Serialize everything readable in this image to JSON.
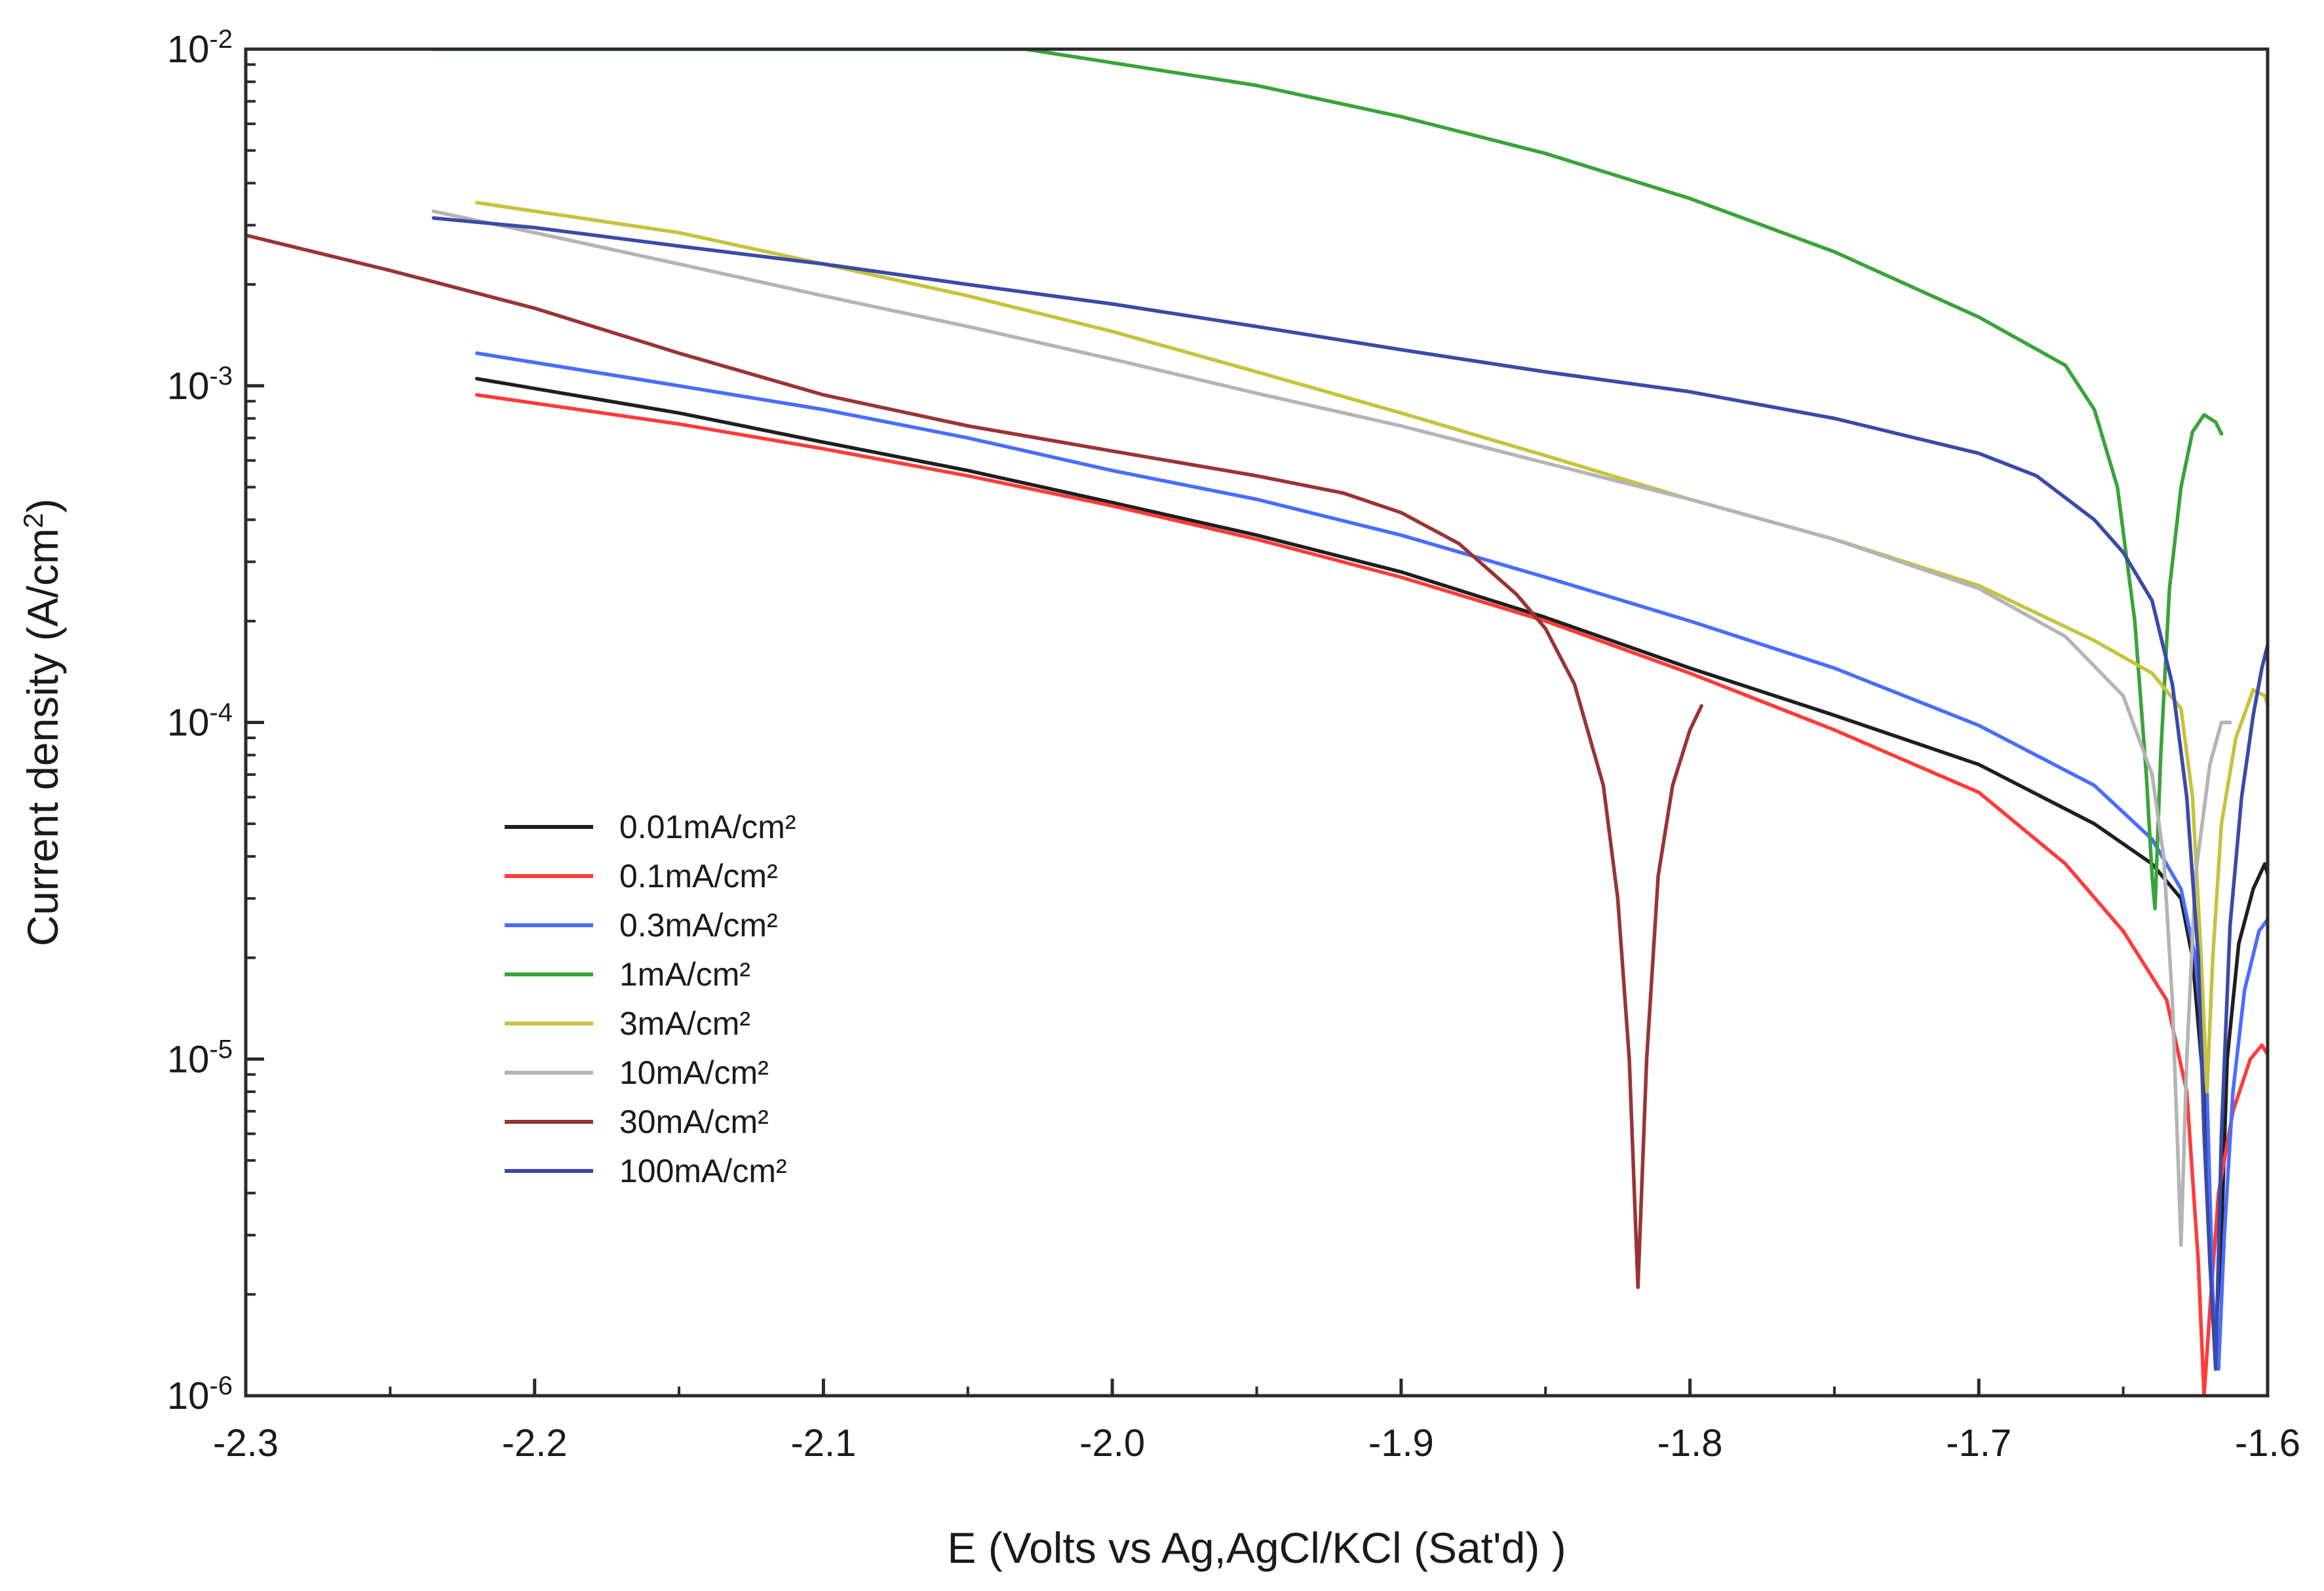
{
  "chart_data": {
    "type": "line",
    "title": "",
    "xlabel": "E (Volts vs Ag,AgCl/KCl (Sat'd) )",
    "ylabel": "Current density (A/cm²)",
    "ylabel_parts": {
      "main": "Current density (A/cm",
      "sup": "2",
      "end": ")"
    },
    "xlim": [
      -2.3,
      -1.6
    ],
    "ylim": [
      1e-06,
      0.01
    ],
    "yscale": "log",
    "grid": false,
    "legend_position": "lower-left",
    "xticks": [
      {
        "value": -2.3,
        "label": "-2.3"
      },
      {
        "value": -2.2,
        "label": "-2.2"
      },
      {
        "value": -2.1,
        "label": "-2.1"
      },
      {
        "value": -2.0,
        "label": "-2.0"
      },
      {
        "value": -1.9,
        "label": "-1.9"
      },
      {
        "value": -1.8,
        "label": "-1.8"
      },
      {
        "value": -1.7,
        "label": "-1.7"
      },
      {
        "value": -1.6,
        "label": "-1.6"
      }
    ],
    "yticks": [
      {
        "value": 0.01,
        "base": "10",
        "exp": "-2"
      },
      {
        "value": 0.001,
        "base": "10",
        "exp": "-3"
      },
      {
        "value": 0.0001,
        "base": "10",
        "exp": "-4"
      },
      {
        "value": 1e-05,
        "base": "10",
        "exp": "-5"
      },
      {
        "value": 1e-06,
        "base": "10",
        "exp": "-6"
      }
    ],
    "series": [
      {
        "name": "0.01mA/cm²",
        "color": "#1f1f1f",
        "points": [
          [
            -2.22,
            0.00105
          ],
          [
            -2.15,
            0.00083
          ],
          [
            -2.1,
            0.00068
          ],
          [
            -2.05,
            0.00056
          ],
          [
            -2.0,
            0.00045
          ],
          [
            -1.95,
            0.00036
          ],
          [
            -1.9,
            0.00028
          ],
          [
            -1.85,
            0.000205
          ],
          [
            -1.8,
            0.000145
          ],
          [
            -1.75,
            0.000105
          ],
          [
            -1.7,
            7.5e-05
          ],
          [
            -1.66,
            5e-05
          ],
          [
            -1.64,
            3.8e-05
          ],
          [
            -1.63,
            3e-05
          ],
          [
            -1.626,
            2e-05
          ],
          [
            -1.622,
            8e-06
          ],
          [
            -1.62,
            2.5e-06
          ],
          [
            -1.618,
            1.5e-06
          ],
          [
            -1.616,
            3e-06
          ],
          [
            -1.614,
            1e-05
          ],
          [
            -1.61,
            2.2e-05
          ],
          [
            -1.605,
            3.2e-05
          ],
          [
            -1.601,
            3.8e-05
          ],
          [
            -1.599,
            3.3e-05
          ]
        ]
      },
      {
        "name": "0.1mA/cm²",
        "color": "#ff3b3b",
        "points": [
          [
            -2.22,
            0.00094
          ],
          [
            -2.15,
            0.00077
          ],
          [
            -2.1,
            0.00065
          ],
          [
            -2.05,
            0.00054
          ],
          [
            -2.0,
            0.00044
          ],
          [
            -1.95,
            0.00035
          ],
          [
            -1.9,
            0.00027
          ],
          [
            -1.85,
            0.0002
          ],
          [
            -1.8,
            0.00014
          ],
          [
            -1.75,
            9.5e-05
          ],
          [
            -1.7,
            6.2e-05
          ],
          [
            -1.67,
            3.8e-05
          ],
          [
            -1.65,
            2.4e-05
          ],
          [
            -1.635,
            1.5e-05
          ],
          [
            -1.628,
            8e-06
          ],
          [
            -1.624,
            2.5e-06
          ],
          [
            -1.622,
            1e-06
          ],
          [
            -1.62,
            1.8e-06
          ],
          [
            -1.617,
            4e-06
          ],
          [
            -1.612,
            7e-06
          ],
          [
            -1.606,
            1e-05
          ],
          [
            -1.602,
            1.1e-05
          ],
          [
            -1.599,
            1e-05
          ]
        ]
      },
      {
        "name": "0.3mA/cm²",
        "color": "#4a6cff",
        "points": [
          [
            -2.22,
            0.00125
          ],
          [
            -2.15,
            0.001
          ],
          [
            -2.1,
            0.00085
          ],
          [
            -2.05,
            0.0007
          ],
          [
            -2.0,
            0.00056
          ],
          [
            -1.95,
            0.00046
          ],
          [
            -1.9,
            0.00036
          ],
          [
            -1.85,
            0.00027
          ],
          [
            -1.8,
            0.0002
          ],
          [
            -1.75,
            0.000145
          ],
          [
            -1.7,
            9.8e-05
          ],
          [
            -1.66,
            6.5e-05
          ],
          [
            -1.64,
            4.5e-05
          ],
          [
            -1.63,
            3.2e-05
          ],
          [
            -1.625,
            2e-05
          ],
          [
            -1.621,
            8e-06
          ],
          [
            -1.619,
            2e-06
          ],
          [
            -1.617,
            1.2e-06
          ],
          [
            -1.615,
            3e-06
          ],
          [
            -1.612,
            8e-06
          ],
          [
            -1.608,
            1.6e-05
          ],
          [
            -1.603,
            2.4e-05
          ],
          [
            -1.6,
            2.6e-05
          ],
          [
            -1.599,
            2.4e-05
          ]
        ]
      },
      {
        "name": "1mA/cm²",
        "color": "#3aa33a",
        "points": [
          [
            -2.235,
            0.01
          ],
          [
            -2.1,
            0.01
          ],
          [
            -2.03,
            0.01
          ],
          [
            -1.95,
            0.0078
          ],
          [
            -1.9,
            0.0063
          ],
          [
            -1.85,
            0.0049
          ],
          [
            -1.8,
            0.0036
          ],
          [
            -1.75,
            0.0025
          ],
          [
            -1.7,
            0.0016
          ],
          [
            -1.67,
            0.00115
          ],
          [
            -1.66,
            0.00085
          ],
          [
            -1.652,
            0.0005
          ],
          [
            -1.646,
            0.0002
          ],
          [
            -1.642,
            7e-05
          ],
          [
            -1.64,
            3.5e-05
          ],
          [
            -1.639,
            2.8e-05
          ],
          [
            -1.637,
            8e-05
          ],
          [
            -1.634,
            0.00025
          ],
          [
            -1.63,
            0.0005
          ],
          [
            -1.626,
            0.00073
          ],
          [
            -1.622,
            0.00082
          ],
          [
            -1.618,
            0.00078
          ],
          [
            -1.616,
            0.00072
          ]
        ]
      },
      {
        "name": "3mA/cm²",
        "color": "#c8c23c",
        "points": [
          [
            -2.22,
            0.0035
          ],
          [
            -2.15,
            0.00285
          ],
          [
            -2.1,
            0.0023
          ],
          [
            -2.05,
            0.00185
          ],
          [
            -2.0,
            0.00145
          ],
          [
            -1.95,
            0.0011
          ],
          [
            -1.9,
            0.00083
          ],
          [
            -1.85,
            0.00062
          ],
          [
            -1.8,
            0.00046
          ],
          [
            -1.75,
            0.00035
          ],
          [
            -1.7,
            0.000255
          ],
          [
            -1.66,
            0.000175
          ],
          [
            -1.64,
            0.00014
          ],
          [
            -1.63,
            0.00011
          ],
          [
            -1.626,
            6e-05
          ],
          [
            -1.623,
            2e-05
          ],
          [
            -1.621,
            8e-06
          ],
          [
            -1.619,
            2e-05
          ],
          [
            -1.616,
            5e-05
          ],
          [
            -1.611,
            9e-05
          ],
          [
            -1.605,
            0.000125
          ],
          [
            -1.601,
            0.00012
          ],
          [
            -1.599,
            0.000105
          ]
        ]
      },
      {
        "name": "10mA/cm²",
        "color": "#b4b4b4",
        "points": [
          [
            -2.235,
            0.0033
          ],
          [
            -2.2,
            0.00285
          ],
          [
            -2.15,
            0.0023
          ],
          [
            -2.1,
            0.00185
          ],
          [
            -2.05,
            0.0015
          ],
          [
            -2.0,
            0.0012
          ],
          [
            -1.95,
            0.00095
          ],
          [
            -1.9,
            0.00076
          ],
          [
            -1.85,
            0.00059
          ],
          [
            -1.8,
            0.00046
          ],
          [
            -1.75,
            0.00035
          ],
          [
            -1.7,
            0.00025
          ],
          [
            -1.67,
            0.00018
          ],
          [
            -1.65,
            0.00012
          ],
          [
            -1.64,
            7e-05
          ],
          [
            -1.636,
            4e-05
          ],
          [
            -1.633,
            1.5e-05
          ],
          [
            -1.631,
            5e-06
          ],
          [
            -1.63,
            2.8e-06
          ],
          [
            -1.628,
            1e-05
          ],
          [
            -1.625,
            3.5e-05
          ],
          [
            -1.62,
            7.5e-05
          ],
          [
            -1.616,
            0.0001
          ],
          [
            -1.613,
            0.0001
          ]
        ]
      },
      {
        "name": "30mA/cm²",
        "color": "#9a3434",
        "points": [
          [
            -2.3,
            0.0028
          ],
          [
            -2.25,
            0.0022
          ],
          [
            -2.2,
            0.0017
          ],
          [
            -2.15,
            0.00125
          ],
          [
            -2.1,
            0.00094
          ],
          [
            -2.05,
            0.00076
          ],
          [
            -2.0,
            0.00064
          ],
          [
            -1.95,
            0.00054
          ],
          [
            -1.92,
            0.00048
          ],
          [
            -1.9,
            0.00042
          ],
          [
            -1.88,
            0.00034
          ],
          [
            -1.86,
            0.00024
          ],
          [
            -1.85,
            0.00019
          ],
          [
            -1.84,
            0.00013
          ],
          [
            -1.83,
            6.5e-05
          ],
          [
            -1.825,
            3e-05
          ],
          [
            -1.821,
            1e-05
          ],
          [
            -1.818,
            2.1e-06
          ],
          [
            -1.815,
            1e-05
          ],
          [
            -1.811,
            3.5e-05
          ],
          [
            -1.806,
            6.5e-05
          ],
          [
            -1.8,
            9.5e-05
          ],
          [
            -1.796,
            0.000112
          ]
        ]
      },
      {
        "name": "100mA/cm²",
        "color": "#3a4aa8",
        "points": [
          [
            -2.235,
            0.00315
          ],
          [
            -2.2,
            0.00295
          ],
          [
            -2.15,
            0.0026
          ],
          [
            -2.1,
            0.0023
          ],
          [
            -2.05,
            0.002
          ],
          [
            -2.0,
            0.00175
          ],
          [
            -1.95,
            0.0015
          ],
          [
            -1.9,
            0.00128
          ],
          [
            -1.85,
            0.0011
          ],
          [
            -1.8,
            0.00096
          ],
          [
            -1.75,
            0.0008
          ],
          [
            -1.7,
            0.00063
          ],
          [
            -1.68,
            0.00054
          ],
          [
            -1.66,
            0.0004
          ],
          [
            -1.65,
            0.00032
          ],
          [
            -1.64,
            0.00023
          ],
          [
            -1.633,
            0.00013
          ],
          [
            -1.628,
            6e-05
          ],
          [
            -1.624,
            2e-05
          ],
          [
            -1.622,
            6e-06
          ],
          [
            -1.62,
            2.5e-06
          ],
          [
            -1.618,
            1.2e-06
          ],
          [
            -1.616,
            6e-06
          ],
          [
            -1.613,
            2.5e-05
          ],
          [
            -1.609,
            6e-05
          ],
          [
            -1.605,
            0.000105
          ],
          [
            -1.602,
            0.000145
          ],
          [
            -1.6,
            0.00017
          ],
          [
            -1.599,
            0.000185
          ]
        ]
      }
    ]
  }
}
